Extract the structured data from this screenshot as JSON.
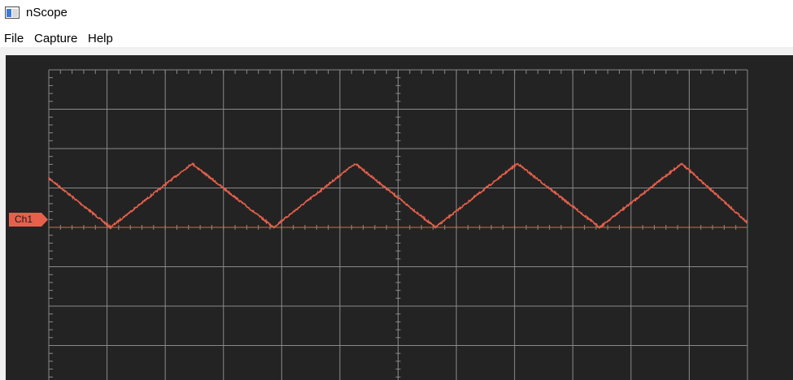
{
  "window": {
    "title": "nScope",
    "icon": "app-window-icon"
  },
  "menu": {
    "items": [
      "File",
      "Capture",
      "Help"
    ]
  },
  "scope": {
    "background": "#232323",
    "grid_color": "#8a8a8a",
    "channel": {
      "label": "Ch1",
      "color": "#e8604c"
    }
  },
  "chart_data": {
    "type": "line",
    "title": "",
    "xlabel": "",
    "ylabel": "",
    "grid": true,
    "divisions": {
      "x": 12,
      "y": 8
    },
    "xlim": [
      0,
      12
    ],
    "ylim": [
      -4,
      4
    ],
    "series": [
      {
        "color": "#e8604c",
        "x": [
          0,
          1.06,
          2.46,
          3.86,
          5.26,
          6.64,
          8.05,
          9.46,
          10.87,
          12.0
        ],
        "values": [
          1.25,
          0.0,
          1.62,
          0.0,
          1.62,
          0.0,
          1.62,
          0.0,
          1.62,
          0.12
        ]
      }
    ]
  }
}
